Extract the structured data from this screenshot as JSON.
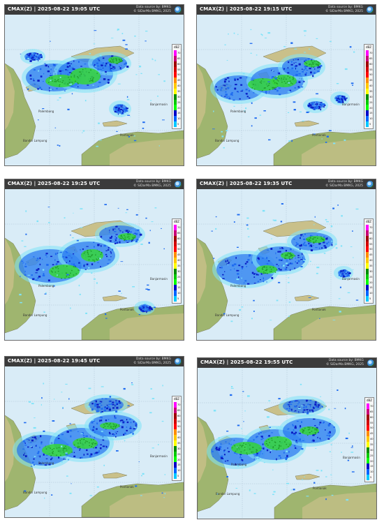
{
  "source_lines": [
    "Data source by: BMKG",
    "© SiDarMa BMKG, 2025"
  ],
  "panels": [
    {
      "title": "CMAX(Z) | 2025-08-22 19:05 UTC"
    },
    {
      "title": "CMAX(Z) | 2025-08-22 19:15 UTC"
    },
    {
      "title": "CMAX(Z) | 2025-08-22 19:25 UTC"
    },
    {
      "title": "CMAX(Z) | 2025-08-22 19:35 UTC"
    },
    {
      "title": "CMAX(Z) | 2025-08-22 19:45 UTC"
    },
    {
      "title": "CMAX(Z) | 2025-08-22 19:55 UTC"
    }
  ],
  "legend": {
    "unit": "dBZ",
    "ticks": [
      "70",
      "65",
      "60",
      "55",
      "50",
      "45",
      "40",
      "35",
      "30",
      "25",
      "20",
      "15",
      "10",
      "5"
    ],
    "colors": [
      "#ff00ff",
      "#c80078",
      "#a00000",
      "#d20000",
      "#ff0000",
      "#ff8c00",
      "#ffc800",
      "#ffff00",
      "#008c00",
      "#00c800",
      "#00ff00",
      "#0000c8",
      "#0064ff",
      "#00c8ff"
    ]
  },
  "place_labels": [
    "Palembang",
    "Bandar Lampung",
    "Pontianak",
    "Banjarmasin"
  ],
  "colors": {
    "sea": "#d9ecf7",
    "land": "#c9c08a",
    "land_green": "#9fb56f",
    "rain_light": "#7fe3f8",
    "rain_mid": "#1f6cf0",
    "rain_blue": "#0a1fc4",
    "rain_green": "#36d63a"
  }
}
